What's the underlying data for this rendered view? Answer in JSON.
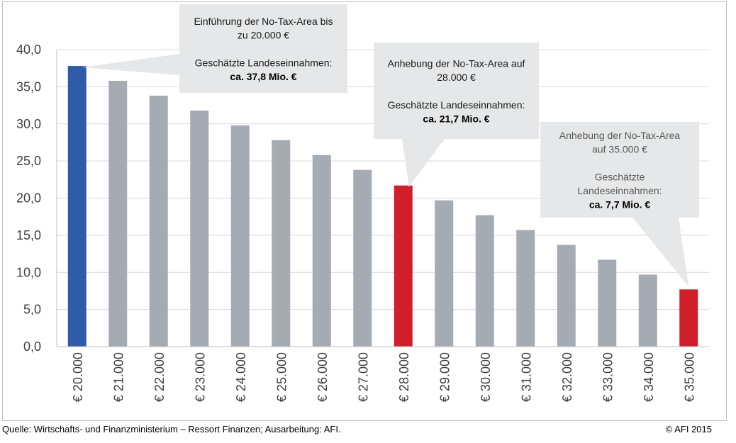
{
  "chart_data": {
    "type": "bar",
    "categories": [
      "€ 20.000",
      "€ 21.000",
      "€ 22.000",
      "€ 23.000",
      "€ 24.000",
      "€ 25.000",
      "€ 26.000",
      "€ 27.000",
      "€ 28.000",
      "€ 29.000",
      "€ 30.000",
      "€ 31.000",
      "€ 32.000",
      "€ 33.000",
      "€ 34.000",
      "€ 35.000"
    ],
    "values": [
      37.8,
      35.8,
      33.8,
      31.8,
      29.8,
      27.8,
      25.8,
      23.8,
      21.7,
      19.7,
      17.7,
      15.7,
      13.7,
      11.7,
      9.7,
      7.7
    ],
    "highlight": [
      "blue",
      "grey",
      "grey",
      "grey",
      "grey",
      "grey",
      "grey",
      "grey",
      "red",
      "grey",
      "grey",
      "grey",
      "grey",
      "grey",
      "grey",
      "red"
    ],
    "ylim": [
      0,
      40
    ],
    "yticks": [
      "0,0",
      "5,0",
      "10,0",
      "15,0",
      "20,0",
      "25,0",
      "30,0",
      "35,0",
      "40,0"
    ],
    "grid": true,
    "colors": {
      "blue": "#2f5ca8",
      "grey": "#a5abb3",
      "red": "#d01f2b",
      "callout": "#e6e7e8"
    },
    "callouts": [
      {
        "bar_index": 0,
        "lines": [
          "Einführung der No-Tax-Area bis",
          "zu 20.000 €",
          "",
          "Geschätzte Landeseinnahmen:"
        ],
        "bold": "ca. 37,8 Mio. €",
        "text_color": "#1a1a1a"
      },
      {
        "bar_index": 8,
        "lines": [
          "Anhebung der No-Tax-Area auf",
          "28.000 €",
          "",
          "Geschätzte Landeseinnahmen:"
        ],
        "bold": "ca. 21,7 Mio. €",
        "text_color": "#1a1a1a"
      },
      {
        "bar_index": 15,
        "lines": [
          "Anhebung der No-Tax-Area",
          "auf 35.000 €",
          "",
          "Geschätzte",
          "Landeseinnahmen:"
        ],
        "bold": "ca. 7,7 Mio. €",
        "text_color": "#595959"
      }
    ]
  },
  "footer": {
    "source": "Quelle: Wirtschafts- und Finanzministerium – Ressort Finanzen; Ausarbeitung: AFI.",
    "copyright": "© AFI 2015"
  }
}
